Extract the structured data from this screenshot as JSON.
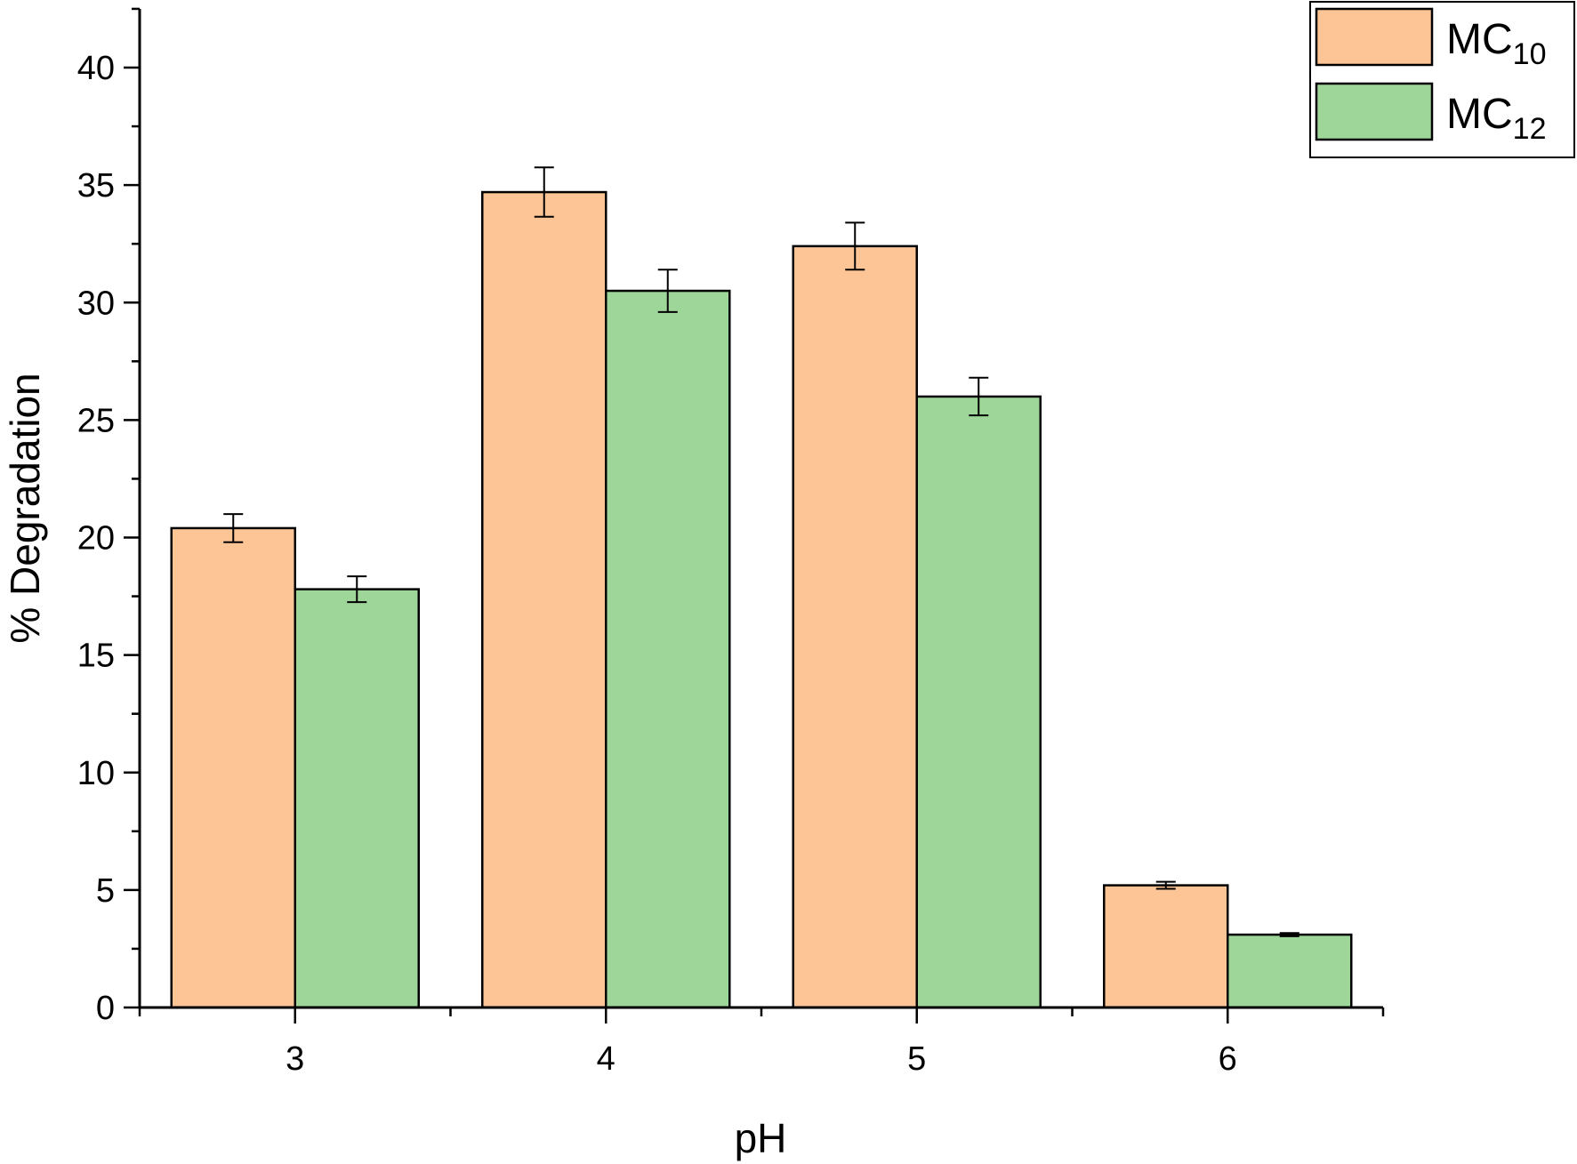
{
  "chart_data": {
    "type": "bar",
    "title": "",
    "xlabel": "pH",
    "ylabel": "% Degradation",
    "categories": [
      "3",
      "4",
      "5",
      "6"
    ],
    "ylim": [
      0,
      42.5
    ],
    "yticks": [
      0,
      5,
      10,
      15,
      20,
      25,
      30,
      35,
      40
    ],
    "legend_position": "top-right",
    "grid": false,
    "series": [
      {
        "name": "MC10",
        "label_main": "MC",
        "label_sub": "10",
        "color": "#FDC596",
        "values": [
          20.4,
          34.7,
          32.4,
          5.2
        ],
        "errors": [
          0.6,
          1.05,
          1.0,
          0.15
        ]
      },
      {
        "name": "MC12",
        "label_main": "MC",
        "label_sub": "12",
        "color": "#9ED69A",
        "values": [
          17.8,
          30.5,
          26.0,
          3.1
        ],
        "errors": [
          0.55,
          0.9,
          0.8,
          0.07
        ]
      }
    ]
  }
}
